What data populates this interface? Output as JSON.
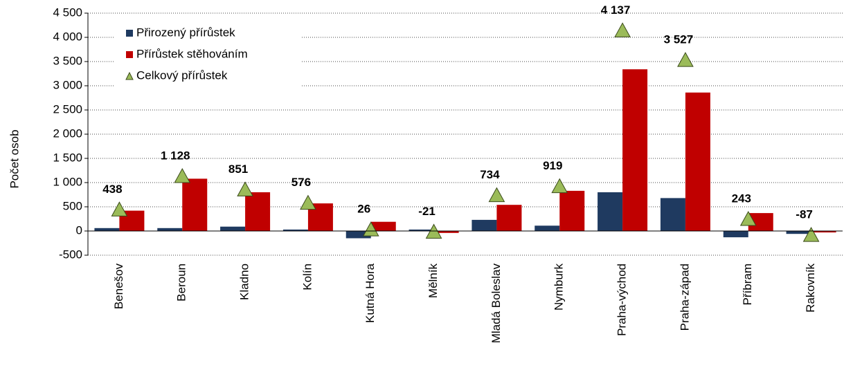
{
  "chart_data": {
    "type": "bar",
    "y_label": "Počet osob",
    "categories": [
      "Benešov",
      "Beroun",
      "Kladno",
      "Kolín",
      "Kutná Hora",
      "Mělník",
      "Mladá Boleslav",
      "Nymburk",
      "Praha-východ",
      "Praha-západ",
      "Příbram",
      "Rakovník"
    ],
    "series": [
      {
        "name": "Přirozený přírůstek",
        "color": "#1f3a60",
        "values": [
          60,
          60,
          90,
          30,
          -150,
          30,
          230,
          110,
          800,
          680,
          -130,
          -60
        ]
      },
      {
        "name": "Přírůstek stěhováním",
        "color": "#c00000",
        "values": [
          420,
          1080,
          800,
          570,
          190,
          -40,
          540,
          830,
          3340,
          2860,
          370,
          -30
        ]
      },
      {
        "name": "Celkový přírůstek",
        "color": "#9bbb59",
        "marker": "triangle",
        "values": [
          438,
          1128,
          851,
          576,
          26,
          -21,
          734,
          919,
          4137,
          3527,
          243,
          -87
        ],
        "value_labels": [
          "438",
          "1 128",
          "851",
          "576",
          "26",
          "-21",
          "734",
          "919",
          "4 137",
          "3 527",
          "243",
          "-87"
        ]
      }
    ],
    "ylim": [
      -500,
      4500
    ],
    "yticks": [
      -500,
      0,
      500,
      {
        "value": 1000,
        "label": "1 000"
      },
      {
        "value": 1500,
        "label": "1 500"
      },
      {
        "value": 2000,
        "label": "2 000"
      },
      {
        "value": 2500,
        "label": "2 500"
      },
      {
        "value": 3000,
        "label": "3 000"
      },
      {
        "value": 3500,
        "label": "3 500"
      },
      {
        "value": 4000,
        "label": "4 000"
      },
      {
        "value": 4500,
        "label": "4 500"
      }
    ],
    "grid": true,
    "legend": "top-left"
  }
}
